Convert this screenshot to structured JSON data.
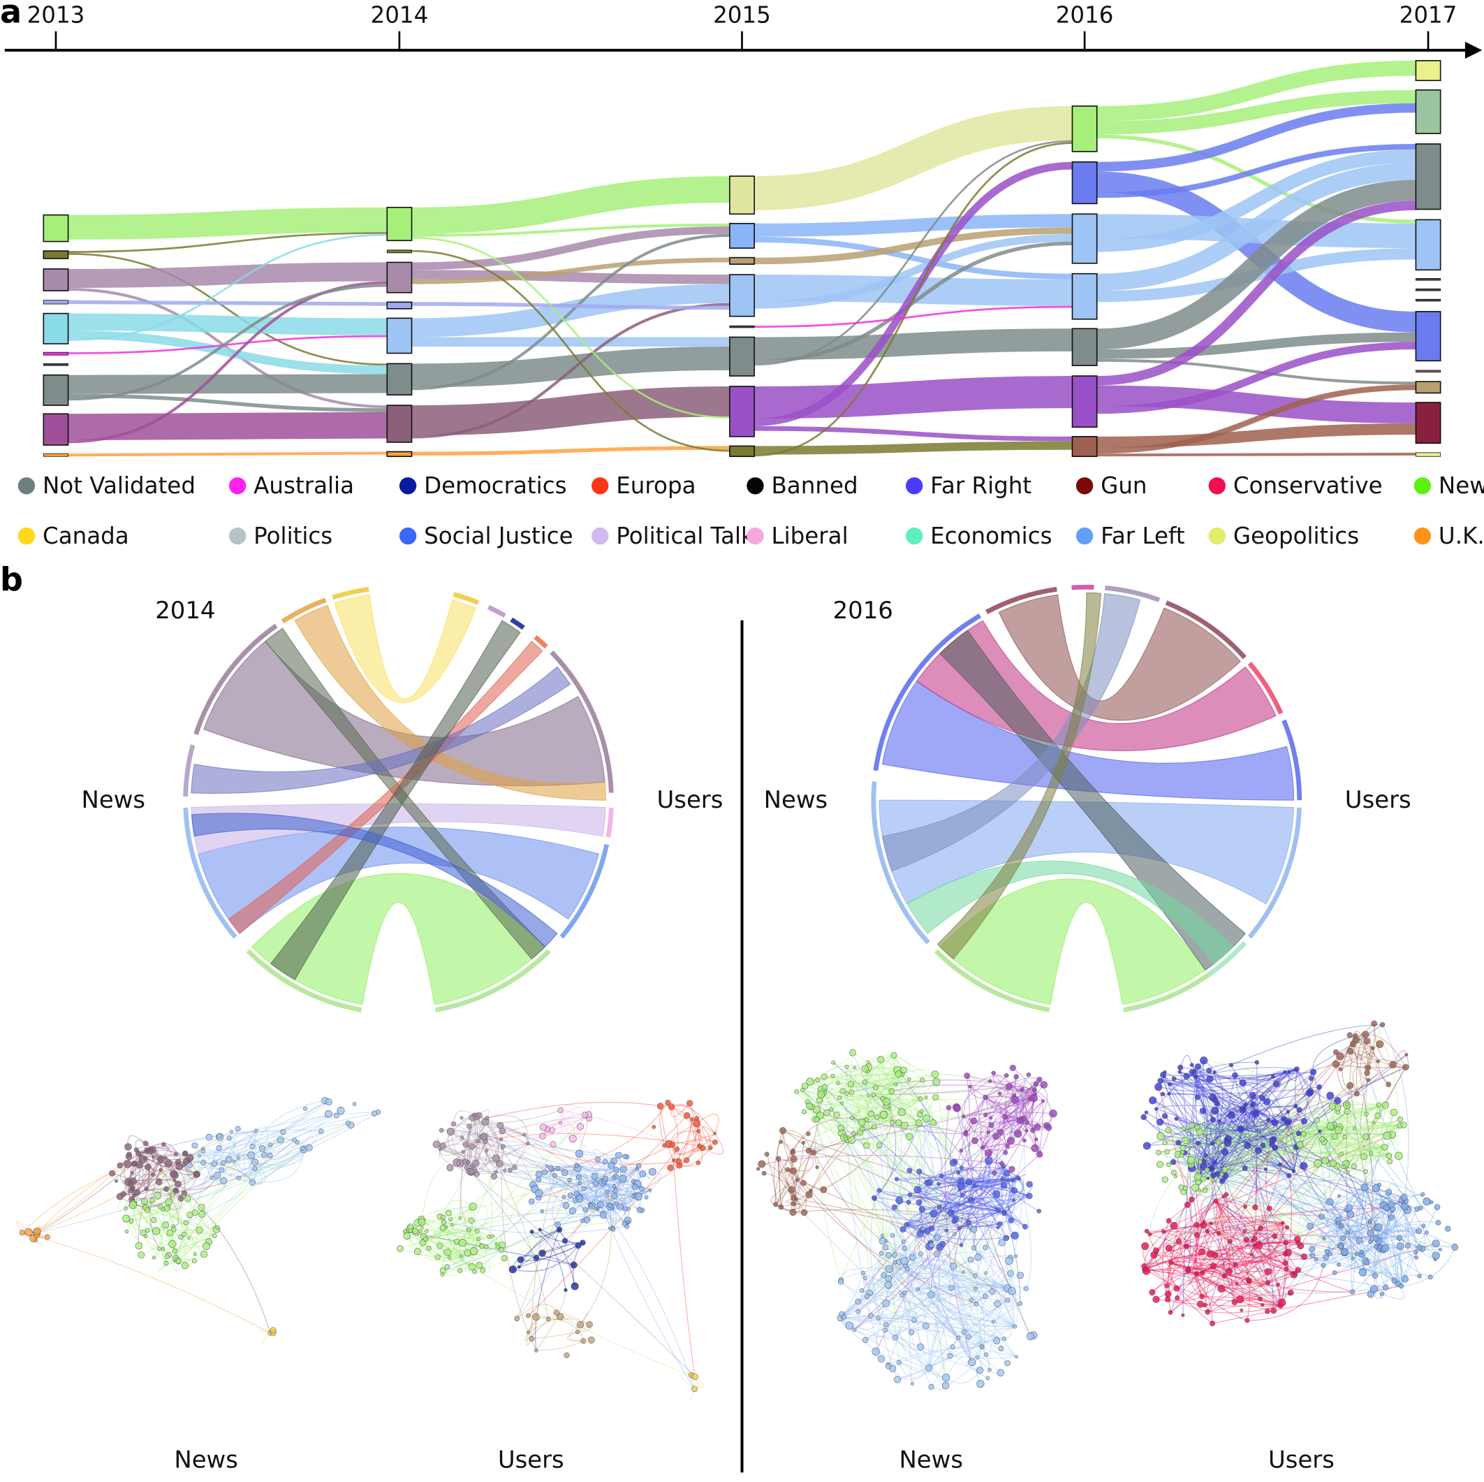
{
  "panel_a": {
    "label": "a",
    "years": [
      "2013",
      "2014",
      "2015",
      "2016",
      "2017"
    ]
  },
  "legend": [
    {
      "label": "Not Validated",
      "color": "#6e7f7f"
    },
    {
      "label": "Australia",
      "color": "#ff22ee"
    },
    {
      "label": "Democratics",
      "color": "#0a1aa0"
    },
    {
      "label": "Europa",
      "color": "#ff3418"
    },
    {
      "label": "Banned",
      "color": "#050505"
    },
    {
      "label": "Far Right",
      "color": "#4a3cff"
    },
    {
      "label": "Gun",
      "color": "#7a0a0a"
    },
    {
      "label": "Conservative",
      "color": "#ee1050"
    },
    {
      "label": "News",
      "color": "#5cf010"
    },
    {
      "label": "Canada",
      "color": "#ffd81a"
    },
    {
      "label": "Politics",
      "color": "#b4c4c4"
    },
    {
      "label": "Social Justice",
      "color": "#3a68f8"
    },
    {
      "label": "Political Talk",
      "color": "#d4b8f0"
    },
    {
      "label": "Liberal",
      "color": "#f8a8e0"
    },
    {
      "label": "Economics",
      "color": "#5cf0c0"
    },
    {
      "label": "Far Left",
      "color": "#60a0f8"
    },
    {
      "label": "Geopolitics",
      "color": "#e2ee6a"
    },
    {
      "label": "U.K.",
      "color": "#ff9418"
    }
  ],
  "panel_b": {
    "label": "b",
    "left": {
      "year": "2014",
      "chord_left": "News",
      "chord_right": "Users",
      "net_left": "News",
      "net_right": "Users"
    },
    "right": {
      "year": "2016",
      "chord_left": "News",
      "chord_right": "Users",
      "net_left": "News",
      "net_right": "Users"
    }
  }
}
